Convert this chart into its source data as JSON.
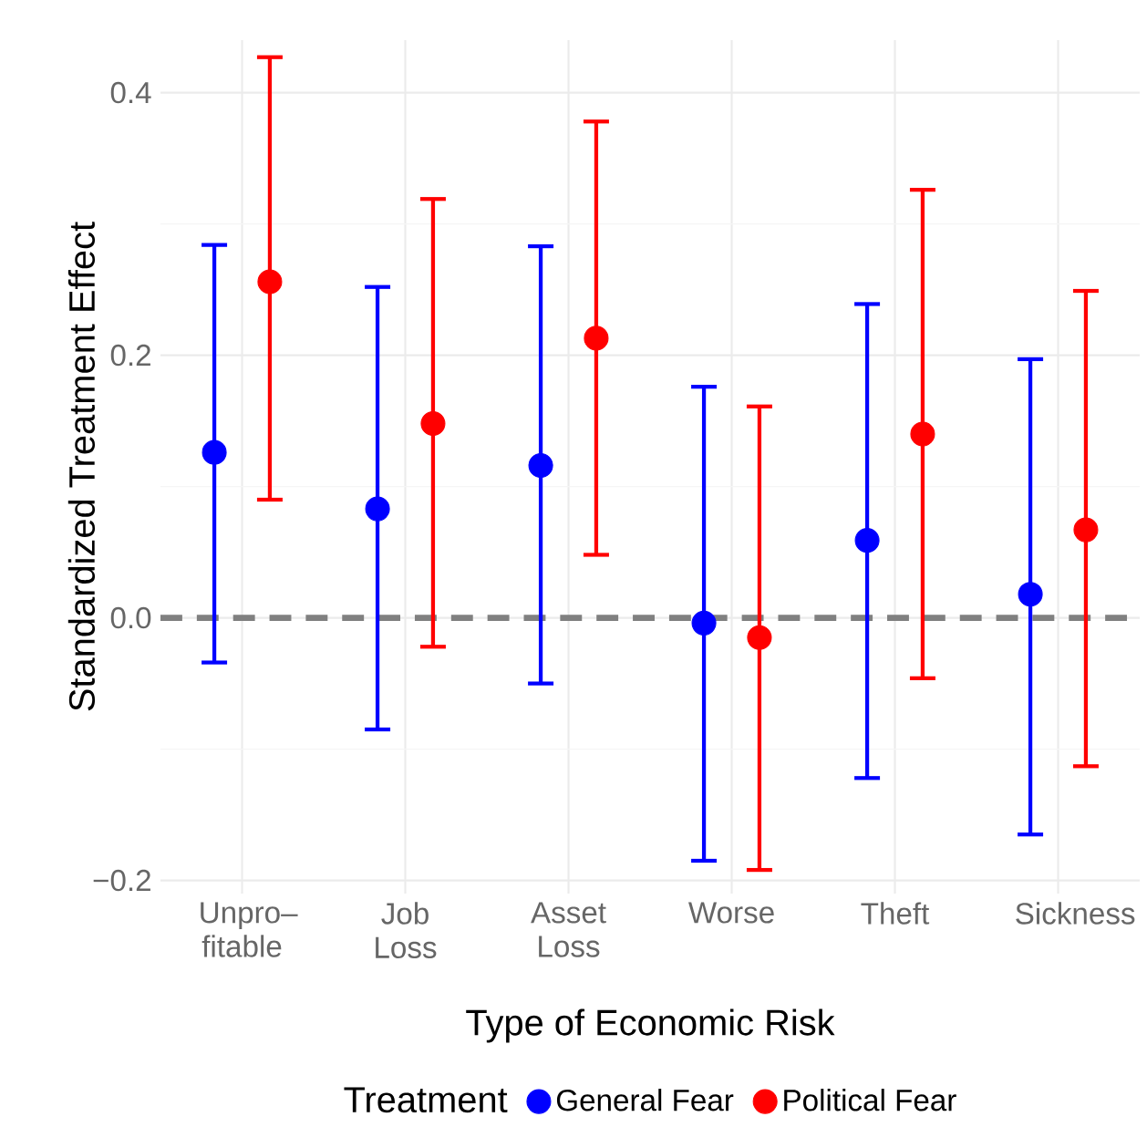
{
  "chart_data": {
    "type": "scatter",
    "xlabel": "Type of Economic Risk",
    "ylabel": "Standardized Treatment Effect",
    "legend_title": "Treatment",
    "categories": [
      "Unpro– fitable",
      "Job Loss",
      "Asset Loss",
      "Worse",
      "Theft",
      "Sickness"
    ],
    "series": [
      {
        "name": "General Fear",
        "color": "#0000ff",
        "values": [
          0.126,
          0.083,
          0.116,
          -0.004,
          0.059,
          0.018
        ],
        "errors": [
          [
            -0.034,
            0.284
          ],
          [
            -0.085,
            0.252
          ],
          [
            -0.05,
            0.283
          ],
          [
            -0.185,
            0.176
          ],
          [
            -0.122,
            0.239
          ],
          [
            -0.165,
            0.197
          ]
        ]
      },
      {
        "name": "Political Fear",
        "color": "#ff0000",
        "values": [
          0.256,
          0.148,
          0.213,
          -0.015,
          0.14,
          0.067
        ],
        "errors": [
          [
            0.09,
            0.427
          ],
          [
            -0.022,
            0.319
          ],
          [
            0.048,
            0.378
          ],
          [
            -0.192,
            0.161
          ],
          [
            -0.046,
            0.326
          ],
          [
            -0.113,
            0.249
          ]
        ]
      }
    ],
    "ylim": [
      -0.21,
      0.44
    ],
    "yticks": [
      {
        "value": -0.2,
        "label": "−0.2"
      },
      {
        "value": 0.0,
        "label": "0.0"
      },
      {
        "value": 0.2,
        "label": "0.2"
      },
      {
        "value": 0.4,
        "label": "0.4"
      }
    ],
    "ref_lines": [
      {
        "axis": "y",
        "value": 0,
        "color": "#808080",
        "line_style": "dashed"
      }
    ],
    "grid": true,
    "legend": "bottom",
    "marker": "circle"
  }
}
